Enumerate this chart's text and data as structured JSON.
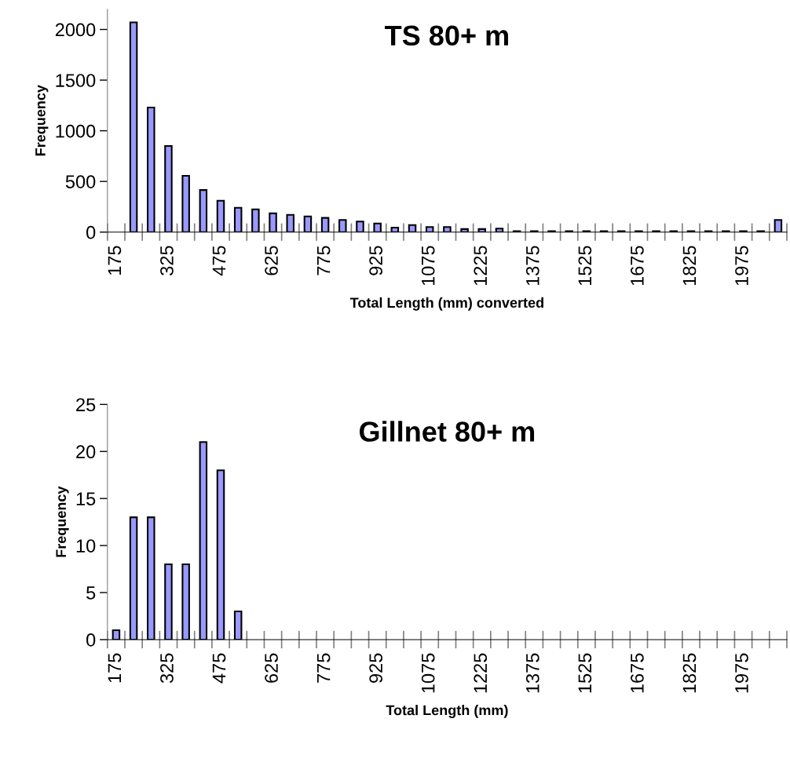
{
  "chart_data": [
    {
      "type": "bar",
      "title": "TS 80+ m",
      "xlabel": "Total Length (mm) converted",
      "ylabel": "Frequency",
      "categories": [
        "175",
        null,
        null,
        "325",
        null,
        null,
        "475",
        null,
        null,
        "625",
        null,
        null,
        "775",
        null,
        null,
        "925",
        null,
        null,
        "1075",
        null,
        null,
        "1225",
        null,
        null,
        "1375",
        null,
        null,
        "1525",
        null,
        null,
        "1675",
        null,
        null,
        "1825",
        null,
        null,
        "1975",
        null,
        null
      ],
      "values": [
        0,
        2070,
        1230,
        850,
        555,
        415,
        310,
        240,
        225,
        185,
        170,
        155,
        140,
        120,
        105,
        85,
        45,
        70,
        50,
        50,
        30,
        30,
        35,
        10,
        10,
        10,
        10,
        10,
        10,
        10,
        10,
        10,
        10,
        10,
        10,
        10,
        10,
        10,
        120
      ],
      "color": "#9999ff",
      "ylim": [
        0,
        2200
      ],
      "yticks": [
        0,
        500,
        1000,
        1500,
        2000
      ]
    },
    {
      "type": "bar",
      "title": "Gillnet 80+ m",
      "xlabel": "Total Length (mm)",
      "ylabel": "Frequency",
      "categories": [
        "175",
        null,
        null,
        "325",
        null,
        null,
        "475",
        null,
        null,
        "625",
        null,
        null,
        "775",
        null,
        null,
        "925",
        null,
        null,
        "1075",
        null,
        null,
        "1225",
        null,
        null,
        "1375",
        null,
        null,
        "1525",
        null,
        null,
        "1675",
        null,
        null,
        "1825",
        null,
        null,
        "1975",
        null,
        null
      ],
      "values": [
        1,
        13,
        13,
        8,
        8,
        21,
        18,
        3,
        0,
        0,
        0,
        0,
        0,
        0,
        0,
        0,
        0,
        0,
        0,
        0,
        0,
        0,
        0,
        0,
        0,
        0,
        0,
        0,
        0,
        0,
        0,
        0,
        0,
        0,
        0,
        0,
        0,
        0,
        0
      ],
      "color": "#9999ff",
      "ylim": [
        0,
        25
      ],
      "yticks": [
        0,
        5,
        10,
        15,
        20,
        25
      ]
    }
  ]
}
